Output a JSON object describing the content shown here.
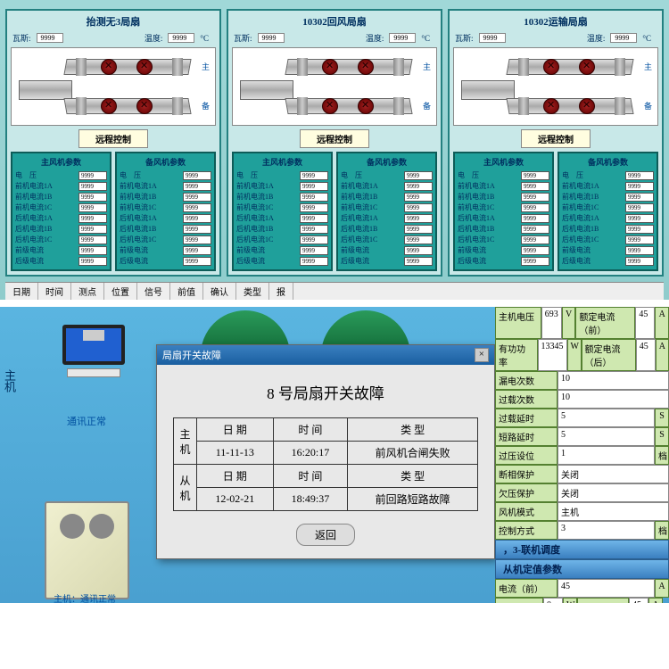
{
  "top": {
    "panels": [
      {
        "title": "抬测无3局扇",
        "readouts": {
          "p1_lbl": "瓦斯",
          "p1_val": "9999",
          "p1_unit": "",
          "p2_lbl": "温度",
          "p2_val": "9999",
          "p2_unit": "°C"
        },
        "branch_upper": "主",
        "branch_lower": "备",
        "ctrl_btn": "远程控制",
        "param_main_title": "主风机参数",
        "param_aux_title": "备风机参数"
      },
      {
        "title": "10302回风局扇",
        "readouts": {
          "p1_lbl": "瓦斯",
          "p1_val": "9999",
          "p1_unit": "",
          "p2_lbl": "温度",
          "p2_val": "9999",
          "p2_unit": "°C"
        },
        "branch_upper": "主",
        "branch_lower": "备",
        "ctrl_btn": "远程控制",
        "param_main_title": "主风机参数",
        "param_aux_title": "备风机参数"
      },
      {
        "title": "10302运输局扇",
        "readouts": {
          "p1_lbl": "瓦斯",
          "p1_val": "9999",
          "p1_unit": "",
          "p2_lbl": "温度",
          "p2_val": "9999",
          "p2_unit": "°C"
        },
        "branch_upper": "主",
        "branch_lower": "备",
        "ctrl_btn": "远程控制",
        "param_main_title": "主风机参数",
        "param_aux_title": "备风机参数"
      }
    ],
    "param_rows": [
      {
        "l": "电　压",
        "v": "9999"
      },
      {
        "l": "前机电流1A",
        "v": "9999"
      },
      {
        "l": "前机电流1B",
        "v": "9999"
      },
      {
        "l": "前机电流1C",
        "v": "9999"
      },
      {
        "l": "后机电流1A",
        "v": "9999"
      },
      {
        "l": "后机电流1B",
        "v": "9999"
      },
      {
        "l": "后机电流1C",
        "v": "9999"
      },
      {
        "l": "前级电流",
        "v": "9999"
      },
      {
        "l": "后级电流",
        "v": "9999"
      }
    ],
    "strip": [
      "日期",
      "时间",
      "测点",
      "位置",
      "信号",
      "前值",
      "确认",
      "类型",
      "报"
    ]
  },
  "lower": {
    "side_label": "主机",
    "conn_ok": "通讯正常",
    "conn_ok2": "通讯正常",
    "elec_badge": "电",
    "dialog": {
      "title": "局扇开关故障",
      "close": "×",
      "heading": "8 号局扇开关故障",
      "cols": [
        "日 期",
        "时 间",
        "类 型"
      ],
      "row_main_lbl": "主机",
      "row_aux_lbl": "从机",
      "main": {
        "date": "11-11-13",
        "time": "16:20:17",
        "type": "前风机合闸失败"
      },
      "aux": {
        "date": "12-02-21",
        "time": "18:49:37",
        "type": "前回路短路故障"
      },
      "return": "返回"
    },
    "right": {
      "rows1": [
        {
          "l": "主机电压",
          "v": "693",
          "u": "V",
          "l2": "额定电流（前）",
          "v2": "45",
          "u2": "A"
        },
        {
          "l": "有功功率",
          "v": "13345",
          "u": "W",
          "l2": "额定电流（后）",
          "v2": "45",
          "u2": "A"
        }
      ],
      "rows_single": [
        {
          "l": "漏电次数",
          "v": "10"
        },
        {
          "l": "过载次数",
          "v": "10"
        },
        {
          "l": "过载延时",
          "v": "5",
          "u": "S"
        },
        {
          "l": "短路延时",
          "v": "5",
          "u": "S"
        },
        {
          "l": "过压设位",
          "v": "1",
          "u": "档"
        },
        {
          "l": "断相保护",
          "v": "关闭"
        },
        {
          "l": "欠压保护",
          "v": "关闭"
        },
        {
          "l": "风机模式",
          "v": "主机"
        },
        {
          "l": "控制方式",
          "v": "3",
          "u": "档"
        }
      ],
      "banner1": "，3-联机调度",
      "banner2": "从机定值参数",
      "rows2": [
        {
          "l": "电流（前）",
          "v": "45",
          "u": "A"
        },
        {
          "l": "有功功率",
          "v": "0",
          "u": "W",
          "l2": "电流（后）",
          "v2": "45",
          "u2": "A"
        }
      ]
    }
  }
}
